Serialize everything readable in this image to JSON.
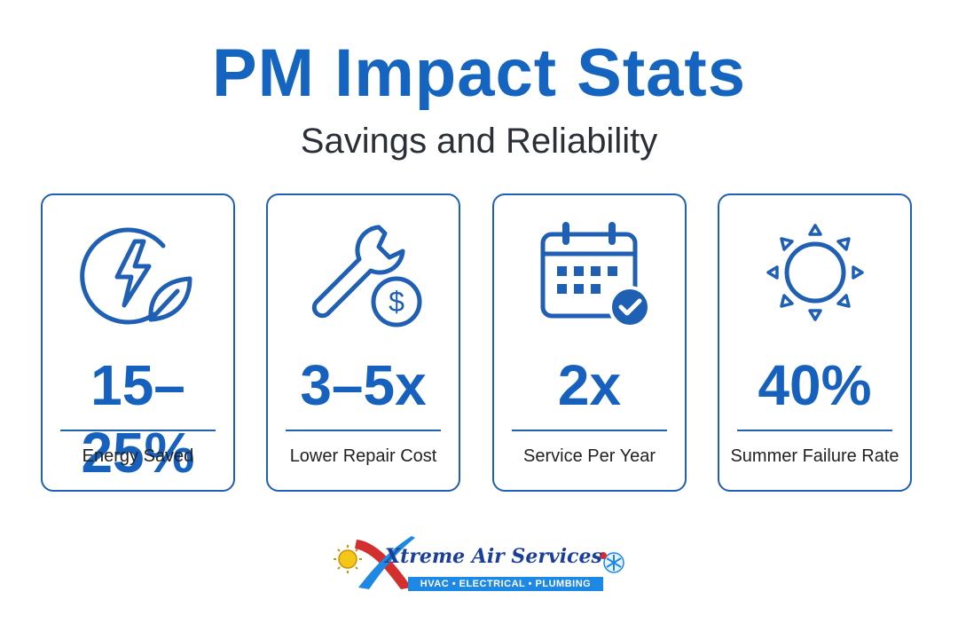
{
  "header": {
    "title": "PM Impact Stats",
    "subtitle": "Savings and Reliability"
  },
  "stats": [
    {
      "value": "15–25%",
      "label": "Energy Saved",
      "icon": "energy-leaf-icon"
    },
    {
      "value": "3–5x",
      "label": "Lower Repair Cost",
      "icon": "wrench-dollar-icon"
    },
    {
      "value": "2x",
      "label": "Service Per Year",
      "icon": "calendar-check-icon"
    },
    {
      "value": "40%",
      "label": "Summer Failure Rate",
      "icon": "sun-icon"
    }
  ],
  "footer": {
    "brand": "Xtreme Air Services",
    "tagline": "HVAC • ELECTRICAL • PLUMBING"
  },
  "colors": {
    "primary": "#1565c0",
    "accent_red": "#d32f2f",
    "accent_blue": "#1e88e5"
  }
}
